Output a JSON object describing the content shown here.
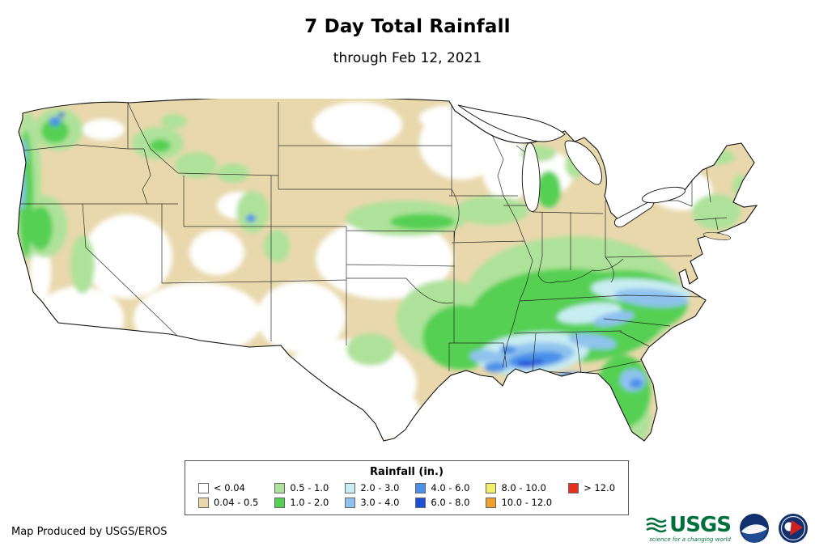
{
  "header": {
    "title": "7 Day Total Rainfall",
    "subtitle": "through Feb 12, 2021"
  },
  "legend": {
    "title": "Rainfall (in.)",
    "items": [
      {
        "label": "< 0.04",
        "color": "#ffffff"
      },
      {
        "label": "0.04 - 0.5",
        "color": "#e8d8ac"
      },
      {
        "label": "0.5 - 1.0",
        "color": "#aee29a"
      },
      {
        "label": "1.0 - 2.0",
        "color": "#55d053"
      },
      {
        "label": "2.0 - 3.0",
        "color": "#c8edf2"
      },
      {
        "label": "3.0 - 4.0",
        "color": "#8fc3ee"
      },
      {
        "label": "4.0 - 6.0",
        "color": "#4a90e8"
      },
      {
        "label": "6.0 - 8.0",
        "color": "#1d50d8"
      },
      {
        "label": "8.0 - 10.0",
        "color": "#f4ef6b"
      },
      {
        "label": "10.0 - 12.0",
        "color": "#f0a02c"
      },
      {
        "label": "> 12.0",
        "color": "#e8301c"
      }
    ]
  },
  "footer": {
    "credit": "Map Produced by USGS/EROS"
  },
  "logos": {
    "usgs": {
      "name": "USGS",
      "tagline": "science for a changing world"
    }
  }
}
